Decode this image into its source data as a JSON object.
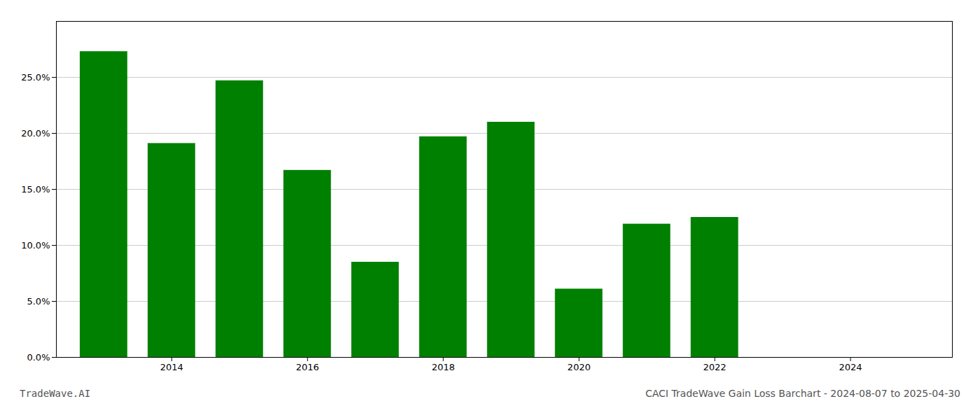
{
  "chart_data": {
    "type": "bar",
    "x": [
      2013,
      2014,
      2015,
      2016,
      2017,
      2018,
      2019,
      2020,
      2021,
      2022,
      2023
    ],
    "values": [
      0.273,
      0.191,
      0.247,
      0.167,
      0.085,
      0.197,
      0.21,
      0.061,
      0.119,
      0.125,
      0.0
    ],
    "color": "#008000",
    "xlim": [
      2012.3,
      2025.5
    ],
    "xticks": [
      2014,
      2016,
      2018,
      2020,
      2022,
      2024
    ],
    "ylim": [
      0.0,
      0.3
    ],
    "yticks": [
      {
        "value": 0.0,
        "label": "0.0%"
      },
      {
        "value": 0.05,
        "label": "5.0%"
      },
      {
        "value": 0.1,
        "label": "10.0%"
      },
      {
        "value": 0.15,
        "label": "15.0%"
      },
      {
        "value": 0.2,
        "label": "20.0%"
      },
      {
        "value": 0.25,
        "label": "25.0%"
      }
    ],
    "grid": true,
    "annotations": [
      "TradeWave.AI",
      "CACI TradeWave Gain Loss Barchart - 2024-08-07 to 2025-04-30"
    ]
  }
}
